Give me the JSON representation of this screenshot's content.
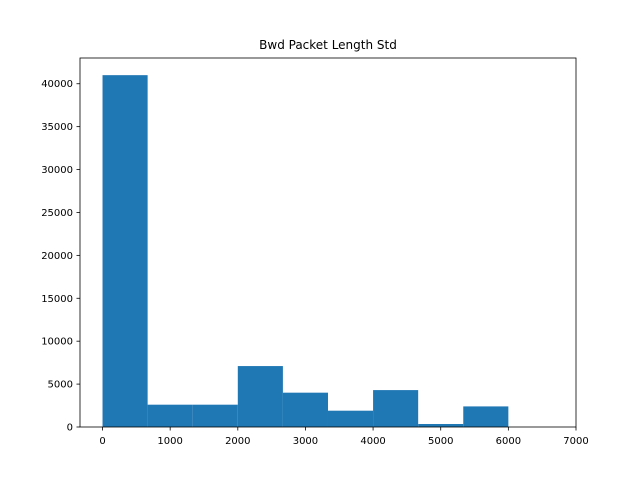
{
  "chart_data": {
    "type": "bar",
    "subtype": "histogram",
    "title": "Bwd Packet Length Std",
    "xlabel": "",
    "ylabel": "",
    "bin_edges": [
      0,
      666.7,
      1333.3,
      2000,
      2666.7,
      3333.3,
      4000,
      4666.7,
      5333.3,
      6000,
      6666.7
    ],
    "values": [
      41000,
      2600,
      2600,
      7100,
      4000,
      1900,
      4300,
      350,
      2400,
      0
    ],
    "xlim": [
      -333,
      7000
    ],
    "ylim": [
      0,
      43000
    ],
    "xticks": [
      0,
      1000,
      2000,
      3000,
      4000,
      5000,
      6000,
      7000
    ],
    "yticks": [
      0,
      5000,
      10000,
      15000,
      20000,
      25000,
      30000,
      35000,
      40000
    ],
    "grid": false,
    "colors": {
      "bar": "#1f77b4",
      "axis": "#000000",
      "background": "#ffffff"
    }
  }
}
